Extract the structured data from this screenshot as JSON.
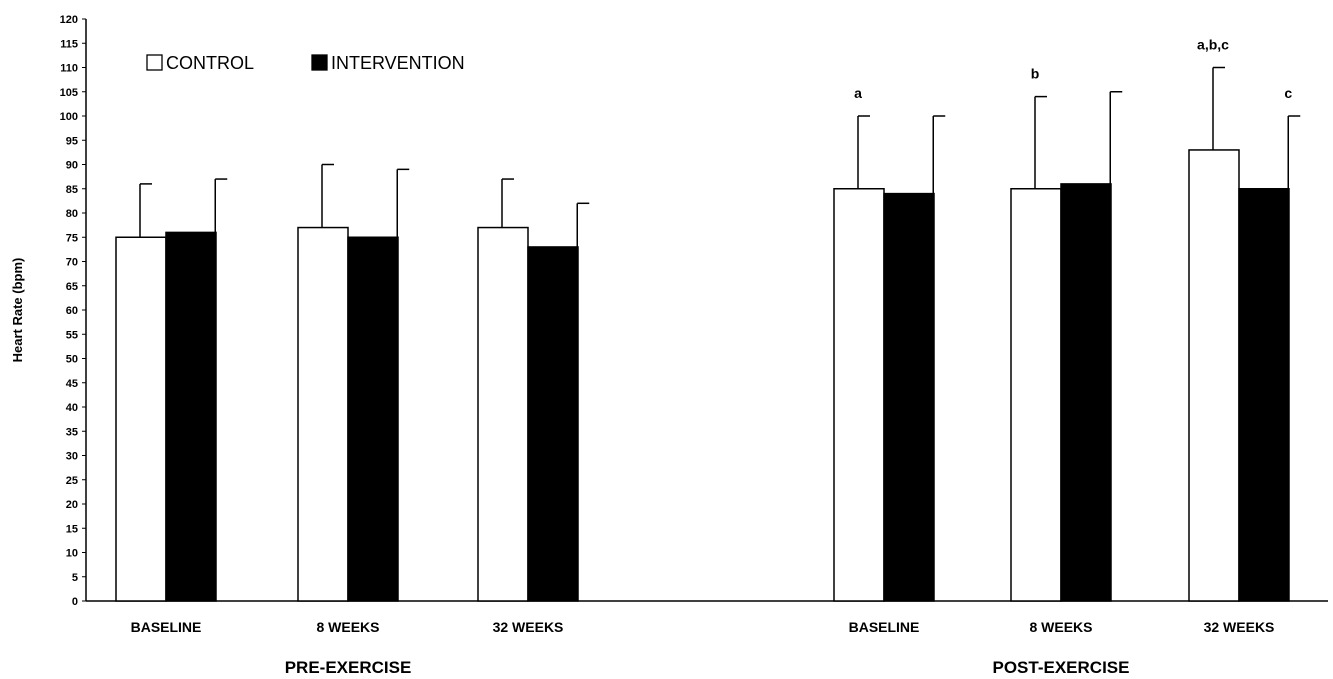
{
  "chart_data": {
    "type": "bar",
    "ylabel": "Heart Rate (bpm)",
    "ylim": [
      0,
      120
    ],
    "ytick_step": 5,
    "grid": false,
    "legend_position": "top-left",
    "groups": [
      {
        "label": "PRE-EXERCISE",
        "categories": [
          "BASELINE",
          "8 WEEKS",
          "32 WEEKS"
        ]
      },
      {
        "label": "POST-EXERCISE",
        "categories": [
          "BASELINE",
          "8 WEEKS",
          "32 WEEKS"
        ]
      }
    ],
    "series": [
      {
        "name": "CONTROL",
        "color": "#ffffff",
        "values": [
          75,
          77,
          77,
          85,
          85,
          93
        ],
        "errors": [
          11,
          13,
          10,
          15,
          19,
          17
        ],
        "annotations": [
          "",
          "",
          "",
          "a",
          "b",
          "a,b,c"
        ]
      },
      {
        "name": "INTERVENTION",
        "color": "#000000",
        "values": [
          76,
          75,
          73,
          84,
          86,
          85
        ],
        "errors": [
          11,
          14,
          9,
          16,
          19,
          15
        ],
        "annotations": [
          "",
          "",
          "",
          "",
          "",
          "c"
        ]
      }
    ]
  }
}
